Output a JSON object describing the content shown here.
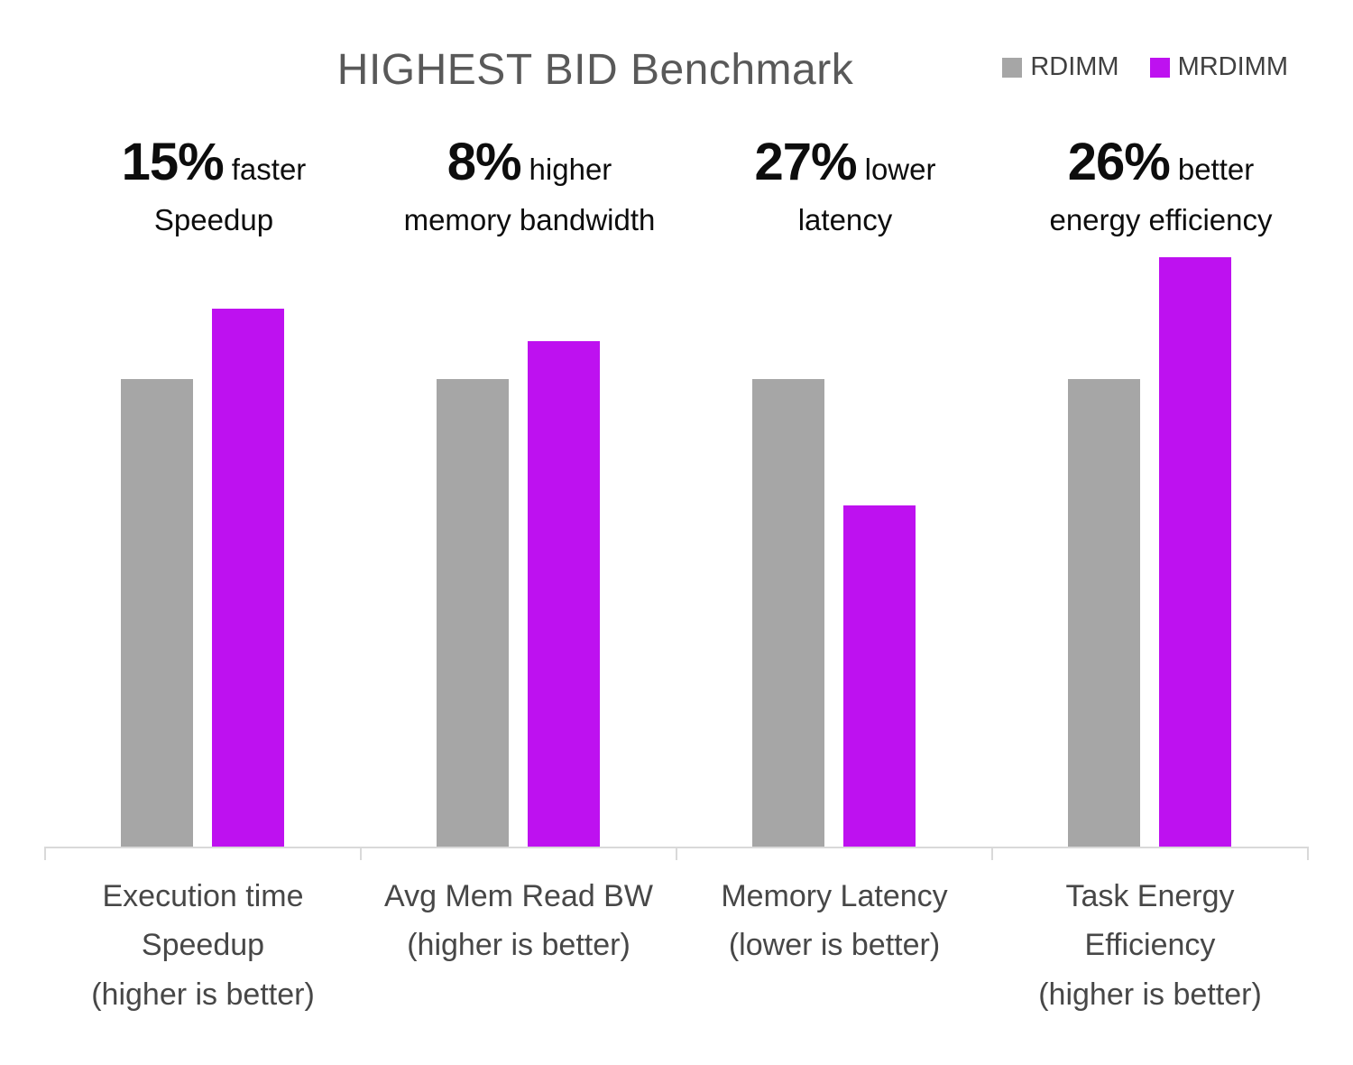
{
  "title": "HIGHEST BID Benchmark",
  "legend": {
    "items": [
      {
        "label": "RDIMM",
        "color": "#a6a6a6"
      },
      {
        "label": "MRDIMM",
        "color": "#be11f0"
      }
    ]
  },
  "chart_data": {
    "type": "bar",
    "title": "HIGHEST BID Benchmark",
    "legend_position": "top-right",
    "grid": false,
    "value_scale": "relative, RDIMM = 1.0",
    "ylim": [
      0,
      1.3
    ],
    "categories": [
      {
        "label_lines": [
          "Execution time",
          "Speedup",
          "(higher is better)"
        ]
      },
      {
        "label_lines": [
          "Avg Mem Read BW",
          "(higher is better)"
        ]
      },
      {
        "label_lines": [
          "Memory Latency",
          "(lower is better)"
        ]
      },
      {
        "label_lines": [
          "Task Energy",
          "Efficiency",
          "(higher is better)"
        ]
      }
    ],
    "annotations": [
      {
        "value": "15%",
        "text": "faster",
        "line2": "Speedup"
      },
      {
        "value": "8%",
        "text": "higher",
        "line2": "memory bandwidth"
      },
      {
        "value": "27%",
        "text": "lower",
        "line2": "latency"
      },
      {
        "value": "26%",
        "text": "better",
        "line2": "energy efficiency"
      }
    ],
    "series": [
      {
        "name": "RDIMM",
        "color": "#a6a6a6",
        "values": [
          1.0,
          1.0,
          1.0,
          1.0
        ]
      },
      {
        "name": "MRDIMM",
        "color": "#be11f0",
        "values": [
          1.15,
          1.08,
          0.73,
          1.26
        ]
      }
    ]
  }
}
